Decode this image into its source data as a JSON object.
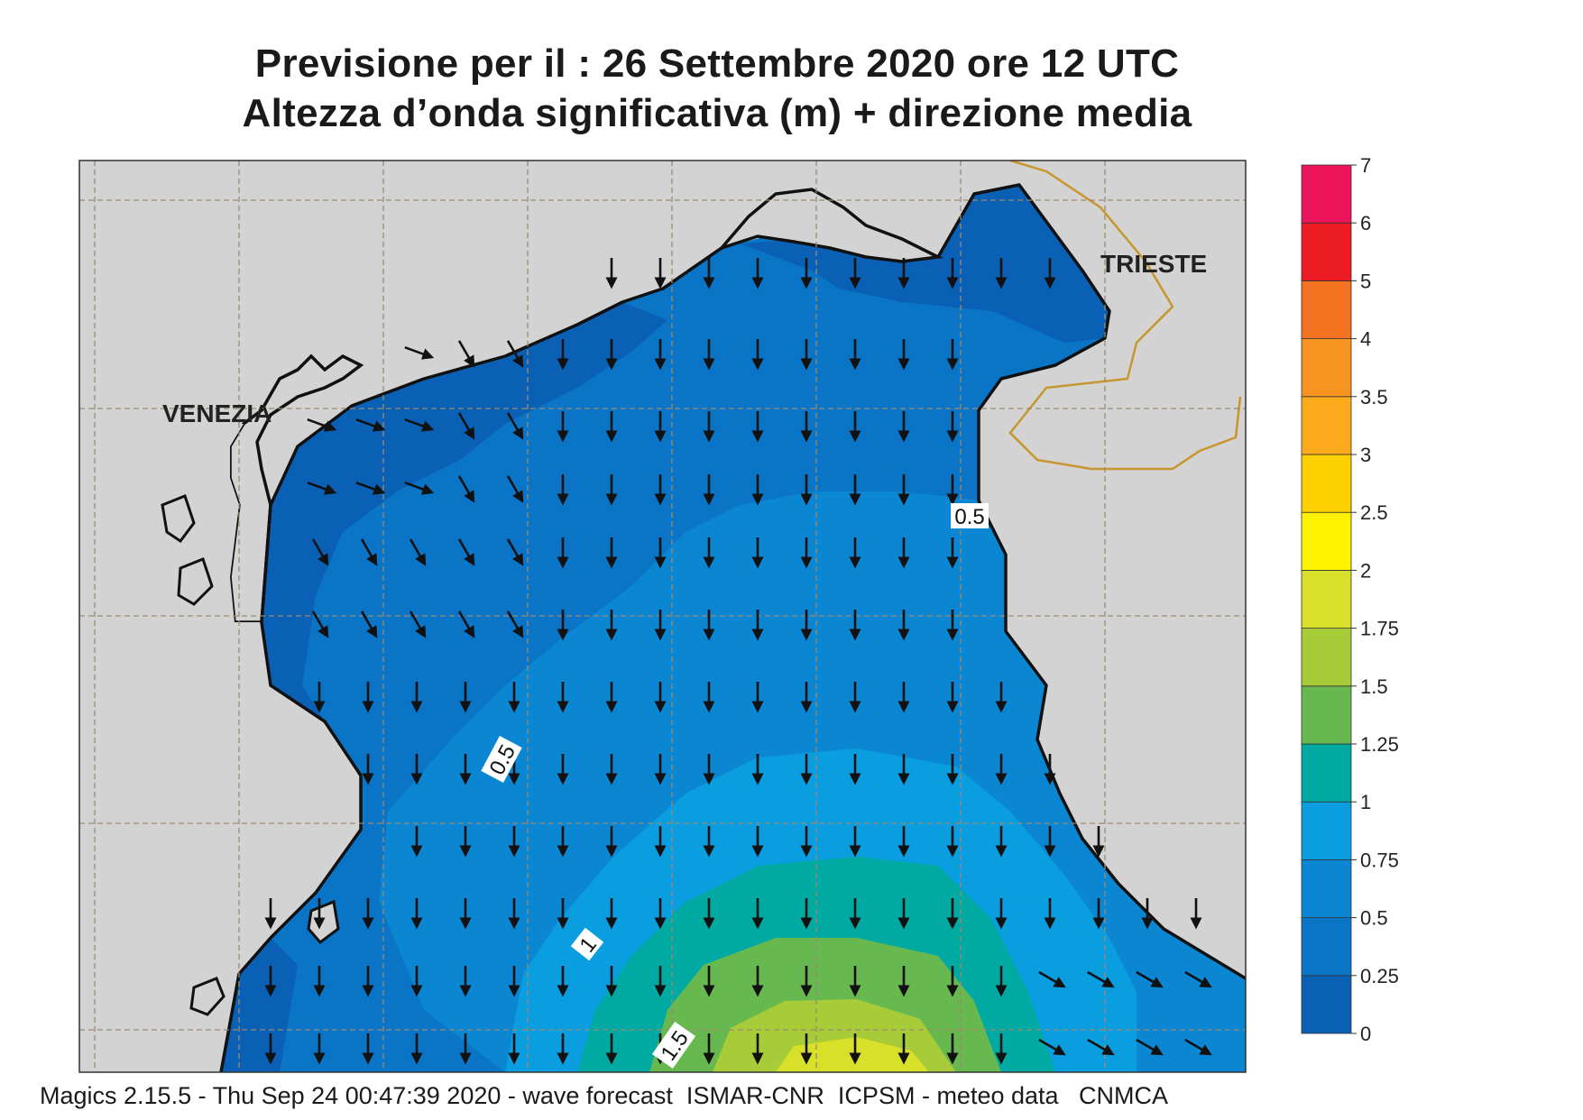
{
  "header": {
    "title_line1": "Previsione per il  :  26 Settembre 2020   ore 12 UTC",
    "title_line2": "Altezza d’onda significativa (m) + direzione media"
  },
  "map": {
    "variable": "Altezza d’onda significativa (m)",
    "place_labels": [
      "VENEZIA",
      "TRIESTE"
    ],
    "contour_labels": [
      "0.5",
      "0.5",
      "1",
      "1.5"
    ],
    "wave_direction": "mostly southward (arrows pointing down), southeastward near the Venetian coast",
    "colors": {
      "land": "#d3d3d3",
      "coastline": "#111111",
      "border": "#c8962e",
      "grid": "#9a8a70"
    }
  },
  "legend": {
    "ticks": [
      "0",
      "0.25",
      "0.5",
      "0.75",
      "1",
      "1.25",
      "1.5",
      "1.75",
      "2",
      "2.5",
      "3",
      "3.5",
      "4",
      "5",
      "6",
      "7"
    ],
    "bins": [
      {
        "from": "0",
        "to": "0.25",
        "color": "#0a60b4"
      },
      {
        "from": "0.25",
        "to": "0.5",
        "color": "#0a74c6"
      },
      {
        "from": "0.5",
        "to": "0.75",
        "color": "#0a86d2"
      },
      {
        "from": "0.75",
        "to": "1",
        "color": "#0a9de0"
      },
      {
        "from": "1",
        "to": "1.25",
        "color": "#00aaa2"
      },
      {
        "from": "1.25",
        "to": "1.5",
        "color": "#68b850"
      },
      {
        "from": "1.5",
        "to": "1.75",
        "color": "#a8cc38"
      },
      {
        "from": "1.75",
        "to": "2",
        "color": "#d8e02a"
      },
      {
        "from": "2",
        "to": "2.5",
        "color": "#fff200"
      },
      {
        "from": "2.5",
        "to": "3",
        "color": "#ffd000"
      },
      {
        "from": "3",
        "to": "3.5",
        "color": "#fbab1c"
      },
      {
        "from": "3.5",
        "to": "4",
        "color": "#f79420"
      },
      {
        "from": "4",
        "to": "5",
        "color": "#f37321"
      },
      {
        "from": "5",
        "to": "6",
        "color": "#ed1c24"
      },
      {
        "from": "6",
        "to": "7",
        "color": "#ee145b"
      }
    ]
  },
  "footer": {
    "text": "Magics 2.15.5 - Thu Sep 24 00:47:39 2020 - wave forecast  ISMAR-CNR  ICPSM - meteo data   CNMCA"
  }
}
